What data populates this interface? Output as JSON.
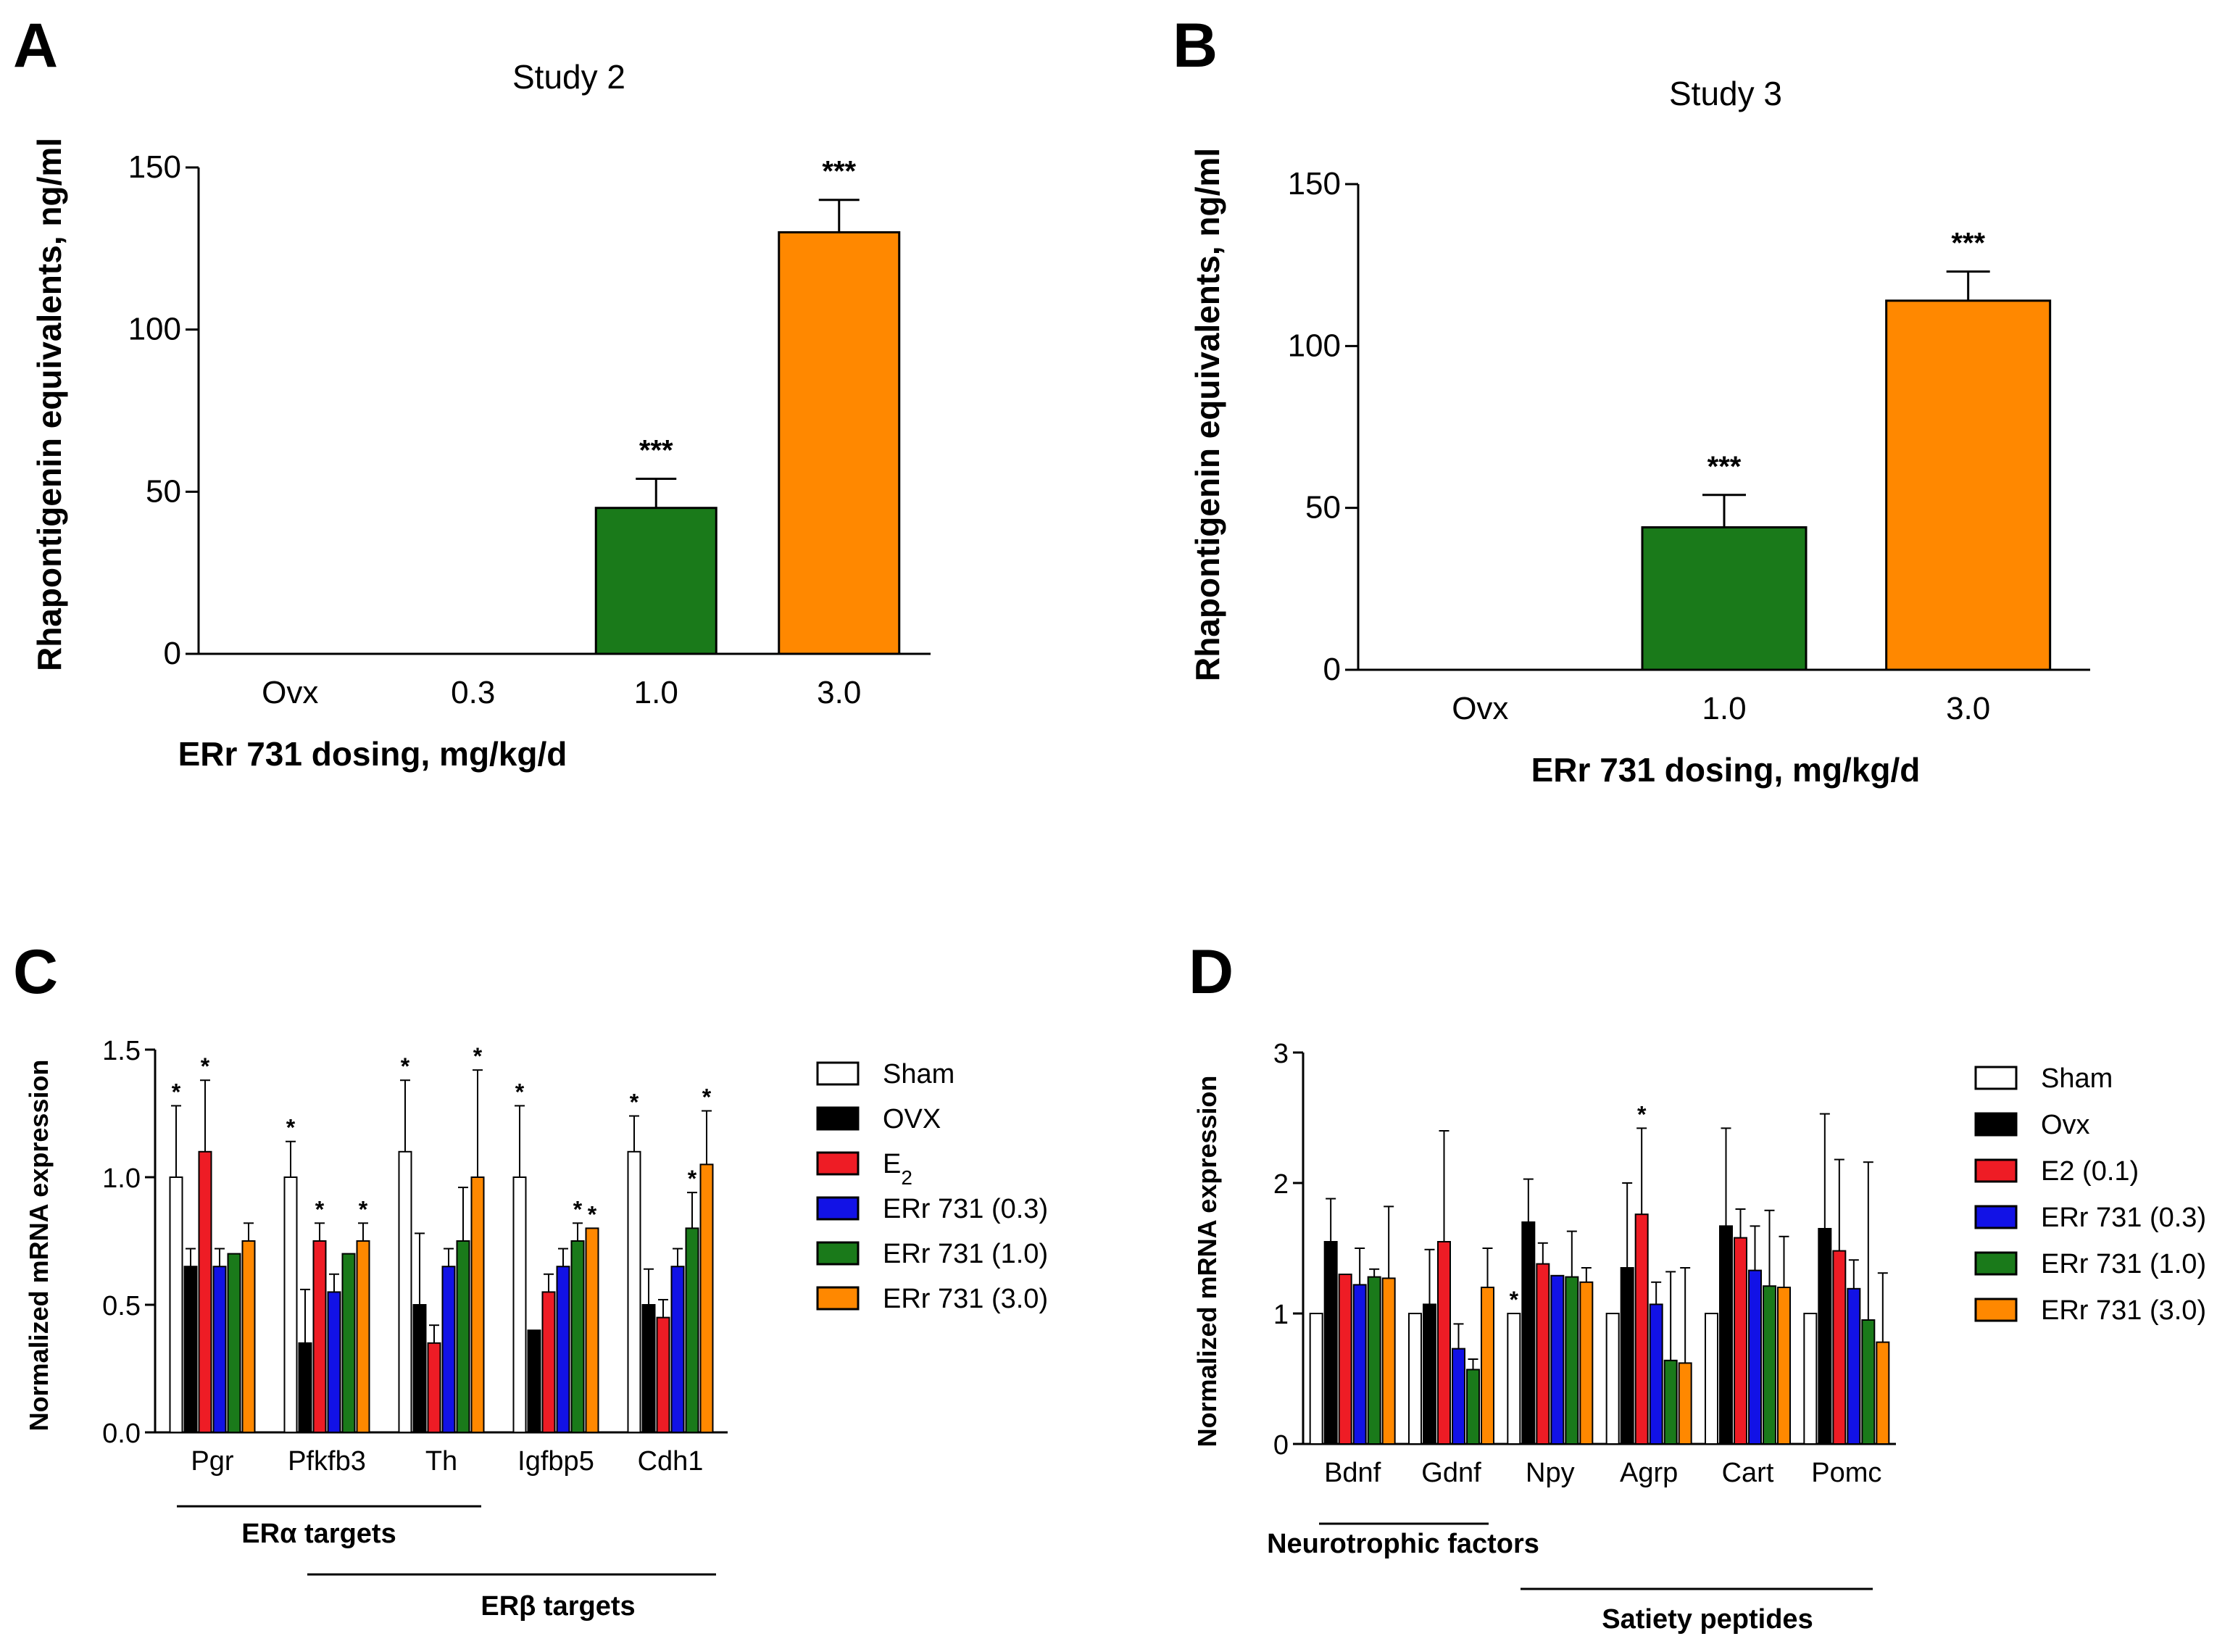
{
  "colors": {
    "Sham": "#ffffff",
    "OVX": "#000000",
    "E2": "#ee1c25",
    "ER731_03": "#1212e6",
    "ER731_10": "#1a7a1a",
    "ER731_30": "#ff8800",
    "Green": "#1a7a1a",
    "Orange": "#ff8800"
  },
  "chart_data": [
    {
      "panel": "A",
      "type": "bar",
      "title": "Study 2",
      "xlabel": "ERr 731 dosing, mg/kg/d",
      "ylabel": "Rhapontigenin equivalents, ng/ml",
      "categories": [
        "Ovx",
        "0.3",
        "1.0",
        "3.0"
      ],
      "values": [
        0,
        0,
        45,
        130
      ],
      "errors": [
        0,
        0,
        9,
        10
      ],
      "bar_colors": [
        "",
        "",
        "Green",
        "Orange"
      ],
      "significance": [
        "",
        "",
        "***",
        "***"
      ],
      "ylim": [
        0,
        150
      ],
      "yticks": [
        0,
        50,
        100,
        150
      ],
      "ytick_labels": [
        "0",
        "50",
        "100",
        "150"
      ]
    },
    {
      "panel": "B",
      "type": "bar",
      "title": "Study 3",
      "xlabel": "ERr 731 dosing, mg/kg/d",
      "ylabel": "Rhapontigenin equivalents, ng/ml",
      "categories": [
        "Ovx",
        "1.0",
        "3.0"
      ],
      "values": [
        0,
        44,
        114
      ],
      "errors": [
        0,
        10,
        9
      ],
      "bar_colors": [
        "",
        "Green",
        "Orange"
      ],
      "significance": [
        "",
        "***",
        "***"
      ],
      "ylim": [
        0,
        150
      ],
      "yticks": [
        0,
        50,
        100,
        150
      ],
      "ytick_labels": [
        "0",
        "50",
        "100",
        "150"
      ]
    },
    {
      "panel": "C",
      "type": "bar",
      "ylabel": "Normalized mRNA expression",
      "categories": [
        "Pgr",
        "Pfkfb3",
        "Th",
        "Igfbp5",
        "Cdh1"
      ],
      "ylim": [
        0,
        1.5
      ],
      "yticks": [
        0,
        0.5,
        1.0,
        1.5
      ],
      "ytick_labels": [
        "0.0",
        "0.5",
        "1.0",
        "1.5"
      ],
      "legend": [
        {
          "label": "Sham",
          "color": "Sham"
        },
        {
          "label": "OVX",
          "color": "OVX"
        },
        {
          "label": "E",
          "sub": "2",
          "color": "E2"
        },
        {
          "label": "ERr 731 (0.3)",
          "color": "ER731_03"
        },
        {
          "label": "ERr 731 (1.0)",
          "color": "ER731_10"
        },
        {
          "label": "ERr 731 (3.0)",
          "color": "ER731_30"
        }
      ],
      "series": [
        {
          "name": "Sham",
          "values": [
            1.0,
            1.0,
            1.1,
            1.0,
            1.1
          ],
          "errors": [
            0.28,
            0.14,
            0.28,
            0.28,
            0.14
          ],
          "significance": [
            "*",
            "*",
            "*",
            "*",
            "*"
          ]
        },
        {
          "name": "OVX",
          "values": [
            0.65,
            0.35,
            0.5,
            0.4,
            0.5
          ],
          "errors": [
            0.07,
            0.21,
            0.28,
            0.0,
            0.14
          ],
          "significance": [
            "",
            "",
            "",
            "",
            ""
          ]
        },
        {
          "name": "E2",
          "values": [
            1.1,
            0.75,
            0.35,
            0.55,
            0.45
          ],
          "errors": [
            0.28,
            0.07,
            0.07,
            0.07,
            0.07
          ],
          "significance": [
            "*",
            "*",
            "",
            "",
            ""
          ]
        },
        {
          "name": "ERr 731 (0.3)",
          "values": [
            0.65,
            0.55,
            0.65,
            0.65,
            0.65
          ],
          "errors": [
            0.07,
            0.07,
            0.07,
            0.07,
            0.07
          ],
          "significance": [
            "",
            "",
            "",
            "",
            ""
          ]
        },
        {
          "name": "ERr 731 (1.0)",
          "values": [
            0.7,
            0.7,
            0.75,
            0.75,
            0.8
          ],
          "errors": [
            0.0,
            0.0,
            0.21,
            0.07,
            0.14
          ],
          "significance": [
            "",
            "",
            "",
            "*",
            "*"
          ]
        },
        {
          "name": "ERr 731 (3.0)",
          "values": [
            0.75,
            0.75,
            1.0,
            0.8,
            1.05
          ],
          "errors": [
            0.07,
            0.07,
            0.42,
            0.0,
            0.21
          ],
          "significance": [
            "",
            "*",
            "*",
            "*",
            "*"
          ]
        }
      ],
      "groups": [
        {
          "label": "ERα targets"
        },
        {
          "label": "ERβ targets"
        }
      ]
    },
    {
      "panel": "D",
      "type": "bar",
      "ylabel": "Normalized mRNA expression",
      "categories": [
        "Bdnf",
        "Gdnf",
        "Npy",
        "Agrp",
        "Cart",
        "Pomc"
      ],
      "ylim": [
        0,
        3
      ],
      "yticks": [
        0,
        1,
        2,
        3
      ],
      "ytick_labels": [
        "0",
        "1",
        "2",
        "3"
      ],
      "legend": [
        {
          "label": "Sham",
          "color": "Sham"
        },
        {
          "label": "Ovx",
          "color": "OVX"
        },
        {
          "label": "E2 (0.1)",
          "color": "E2"
        },
        {
          "label": "ERr 731 (0.3)",
          "color": "ER731_03"
        },
        {
          "label": "ERr 731 (1.0)",
          "color": "ER731_10"
        },
        {
          "label": "ERr 731 (3.0)",
          "color": "ER731_30"
        }
      ],
      "series": [
        {
          "name": "Sham",
          "values": [
            1.0,
            1.0,
            1.0,
            1.0,
            1.0,
            1.0
          ],
          "errors": [
            0,
            0,
            0,
            0,
            0,
            0
          ],
          "significance": [
            "",
            "",
            "*",
            "",
            "",
            ""
          ]
        },
        {
          "name": "Ovx",
          "values": [
            1.55,
            1.07,
            1.7,
            1.35,
            1.67,
            1.65
          ],
          "errors": [
            0.33,
            0.42,
            0.33,
            0.65,
            0.75,
            0.88
          ],
          "significance": [
            "",
            "",
            "",
            "",
            "",
            ""
          ]
        },
        {
          "name": "E2 (0.1)",
          "values": [
            1.3,
            1.55,
            1.38,
            1.76,
            1.58,
            1.48
          ],
          "errors": [
            0.0,
            0.85,
            0.16,
            0.66,
            0.22,
            0.7
          ],
          "significance": [
            "",
            "",
            "",
            "*",
            "",
            ""
          ]
        },
        {
          "name": "ERr 731 (0.3)",
          "values": [
            1.22,
            0.73,
            1.29,
            1.07,
            1.33,
            1.19
          ],
          "errors": [
            0.28,
            0.19,
            0.0,
            0.17,
            0.34,
            0.22
          ],
          "significance": [
            "",
            "",
            "",
            "",
            "",
            ""
          ]
        },
        {
          "name": "ERr 731 (1.0)",
          "values": [
            1.28,
            0.57,
            1.28,
            0.64,
            1.21,
            0.95
          ],
          "errors": [
            0.06,
            0.08,
            0.35,
            0.68,
            0.58,
            1.21
          ],
          "significance": [
            "",
            "",
            "",
            "",
            "",
            ""
          ]
        },
        {
          "name": "ERr 731 (3.0)",
          "values": [
            1.27,
            1.2,
            1.24,
            0.62,
            1.2,
            0.78
          ],
          "errors": [
            0.55,
            0.3,
            0.11,
            0.73,
            0.39,
            0.53
          ],
          "significance": [
            "",
            "",
            "",
            "",
            "",
            ""
          ]
        }
      ],
      "groups": [
        {
          "label": "Neurotrophic factors"
        },
        {
          "label": "Satiety peptides"
        }
      ]
    }
  ]
}
